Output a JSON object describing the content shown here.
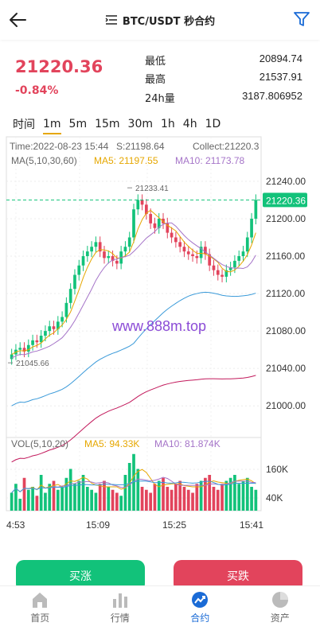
{
  "header": {
    "title": "BTC/USDT 秒合约"
  },
  "ticker": {
    "last_price": "21220.36",
    "change_pct": "-0.84%",
    "stats": [
      {
        "label": "最低",
        "value": "20894.74"
      },
      {
        "label": "最高",
        "value": "21537.91"
      },
      {
        "label": "24h量",
        "value": "3187.806952"
      }
    ]
  },
  "periods": {
    "items": [
      "时间",
      "1m",
      "5m",
      "15m",
      "30m",
      "1h",
      "4h",
      "1D"
    ],
    "active": "1m"
  },
  "chart": {
    "info": {
      "time": "Time:2022-08-23 15:44",
      "s": "S:21198.64",
      "collect": "Collect:21220.3"
    },
    "ma_legend": {
      "label": "MA(5,10,30,60)",
      "ma5": "MA5: 21197.55",
      "ma10": "MA10: 21173.78"
    },
    "price_axis": [
      "21240.00",
      "21200.00",
      "21160.00",
      "21120.00",
      "21080.00",
      "21040.00",
      "21000.00"
    ],
    "current_price_tag": "21220.36",
    "high_marker": "21233.41",
    "low_marker": "21045.66",
    "watermark": "www.888m.top",
    "vol_legend": {
      "label": "VOL(5,10,20)",
      "ma5": "MA5: 94.33K",
      "ma10": "MA10: 81.874K"
    },
    "vol_axis": [
      "160K",
      "40K"
    ],
    "time_axis": [
      "4:53",
      "15:09",
      "15:25",
      "15:41"
    ],
    "colors": {
      "up": "#12c27a",
      "down": "#e2445c",
      "ma5": "#e6a700",
      "ma10": "#a574c8",
      "ma30": "#3a9ad9",
      "ma60": "#c2185b"
    }
  },
  "actions": {
    "buy": "买涨",
    "sell": "买跌"
  },
  "nav": {
    "items": [
      {
        "label": "首页",
        "icon": "home-icon"
      },
      {
        "label": "行情",
        "icon": "market-icon"
      },
      {
        "label": "合约",
        "icon": "contract-icon"
      },
      {
        "label": "资产",
        "icon": "assets-icon"
      }
    ],
    "active_index": 2
  }
}
